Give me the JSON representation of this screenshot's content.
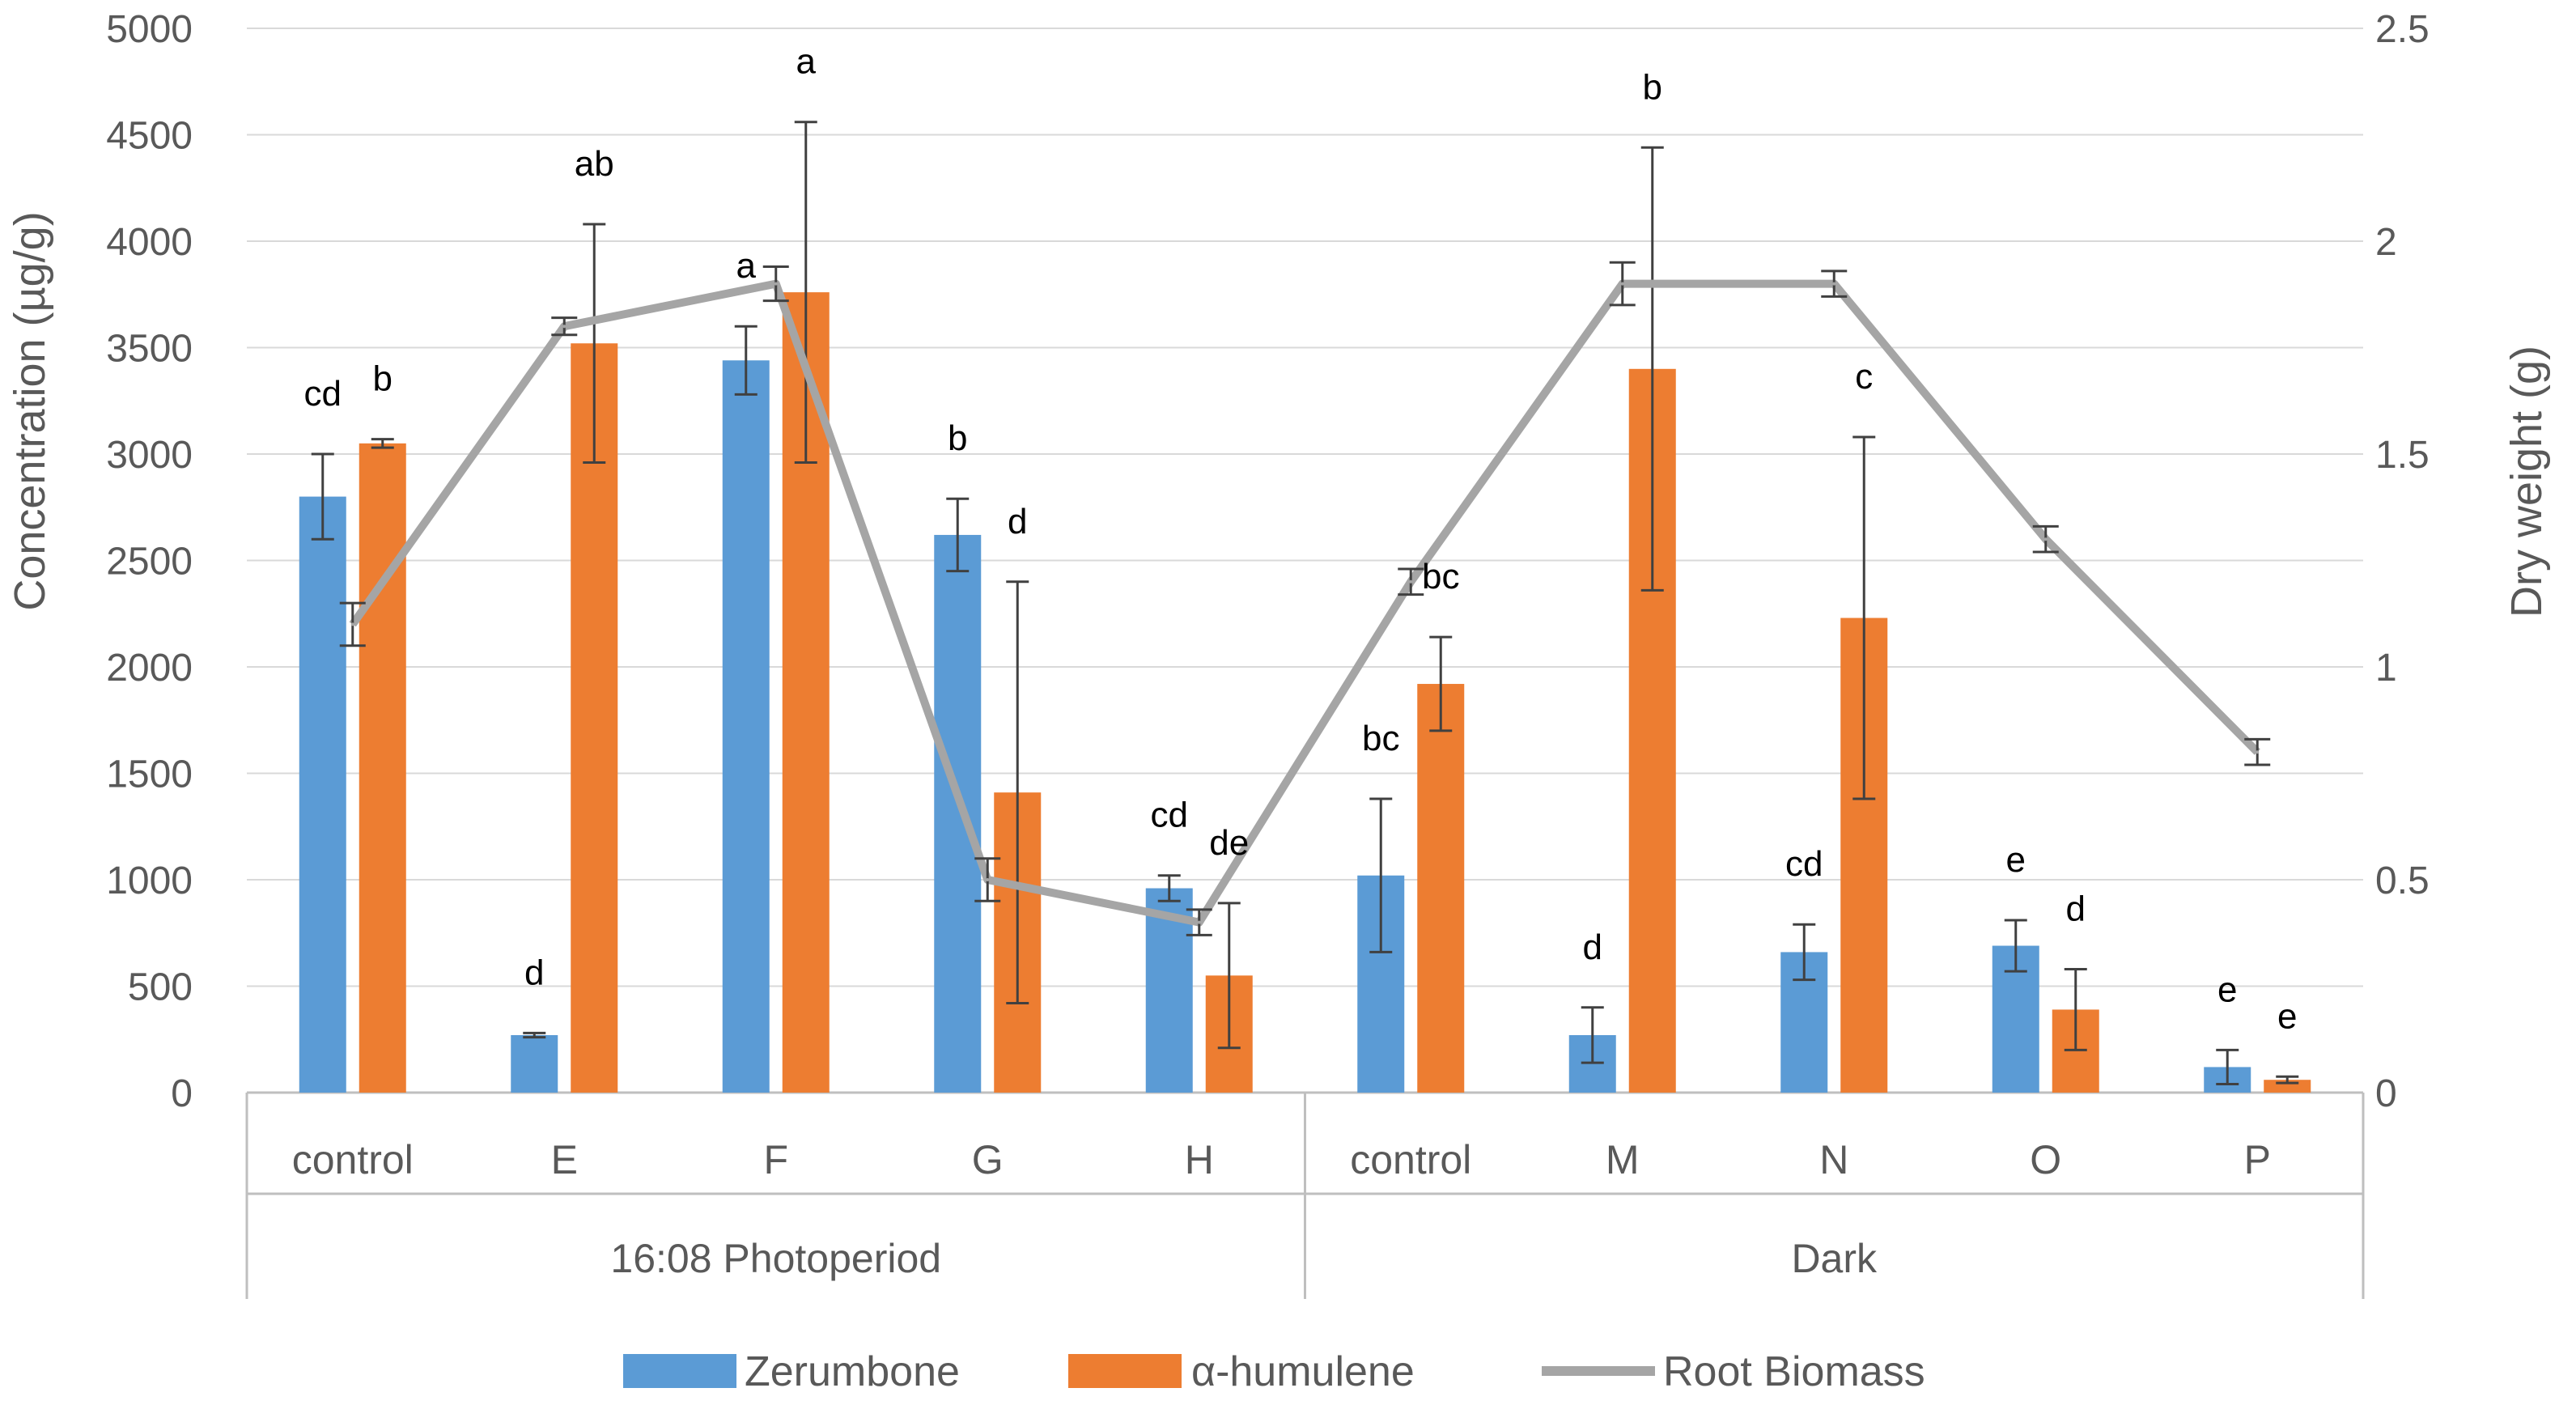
{
  "chart_data": {
    "type": "bar",
    "title": "",
    "ylabel": "Concentration (µg/g)",
    "y2label": "Dry weight (g)",
    "ylim": [
      0,
      5000
    ],
    "y2lim": [
      0,
      2.5
    ],
    "yticks": [
      "0",
      "500",
      "1000",
      "1500",
      "2000",
      "2500",
      "3000",
      "3500",
      "4000",
      "4500",
      "5000"
    ],
    "y2ticks": [
      "0",
      "0.5",
      "1",
      "1.5",
      "2",
      "2.5"
    ],
    "categories": [
      "control",
      "E",
      "F",
      "G",
      "H",
      "control",
      "M",
      "N",
      "O",
      "P"
    ],
    "groups": [
      {
        "label": "16:08  Photoperiod",
        "start": 0,
        "end": 4
      },
      {
        "label": "Dark",
        "start": 5,
        "end": 9
      }
    ],
    "series": [
      {
        "name": "Zerumbone",
        "kind": "bar",
        "axis": "left",
        "color": "#5B9BD5",
        "values": [
          2800,
          270,
          3440,
          2620,
          960,
          1020,
          270,
          660,
          690,
          120
        ],
        "errors": [
          200,
          10,
          160,
          170,
          60,
          360,
          130,
          130,
          120,
          80
        ],
        "labels": [
          "cd",
          "d",
          "a",
          "b",
          "cd",
          "bc",
          "d",
          "cd",
          "e",
          "e"
        ]
      },
      {
        "name": "α-humulene",
        "kind": "bar",
        "axis": "left",
        "color": "#ED7D31",
        "values": [
          3050,
          3520,
          3760,
          1410,
          550,
          1920,
          3400,
          2230,
          390,
          60
        ],
        "errors": [
          20,
          560,
          800,
          990,
          340,
          220,
          1040,
          850,
          190,
          15
        ],
        "labels": [
          "b",
          "ab",
          "a",
          "d",
          "de",
          "bc",
          "b",
          "c",
          "d",
          "e"
        ]
      },
      {
        "name": "Root Biomass",
        "kind": "line",
        "axis": "right",
        "color": "#A5A5A5",
        "values": [
          1.1,
          1.8,
          1.9,
          0.5,
          0.4,
          1.2,
          1.9,
          1.9,
          1.3,
          0.8
        ],
        "errors": [
          0.05,
          0.02,
          0.04,
          0.05,
          0.03,
          0.03,
          0.05,
          0.03,
          0.03,
          0.03
        ]
      }
    ],
    "legend": "bottom"
  }
}
